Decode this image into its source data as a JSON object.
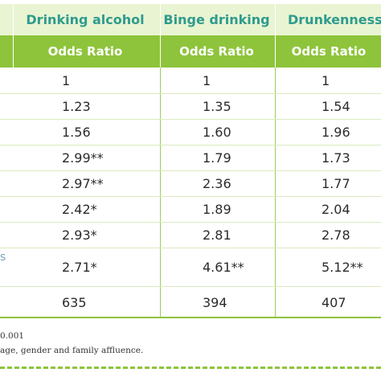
{
  "columns": [
    "Drinking alcohol",
    "Binge drinking",
    "Drunkenness"
  ],
  "subheader": [
    "Odds Ratio",
    "Odds Ratio",
    "Odds Ratio"
  ],
  "rows": [
    [
      "1",
      "1",
      "1"
    ],
    [
      "1.23",
      "1.35",
      "1.54"
    ],
    [
      "1.56",
      "1.60",
      "1.96"
    ],
    [
      "2.99**",
      "1.79",
      "1.73"
    ],
    [
      "2.97**",
      "2.36",
      "1.77"
    ],
    [
      "2.42*",
      "1.89",
      "2.04"
    ],
    [
      "2.93*",
      "2.81",
      "2.78"
    ],
    [
      "2.71*",
      "4.61**",
      "5.12**"
    ],
    [
      "635",
      "394",
      "407"
    ]
  ],
  "stub_fragment": "s",
  "footnotes": {
    "line1": "0.001",
    "line2": "age, gender and family affluence."
  },
  "colors": {
    "header_bg": "#e9f4d2",
    "header_text": "#2e9b8e",
    "subheader_bg": "#8ec43b",
    "rule": "#8ec43b"
  }
}
